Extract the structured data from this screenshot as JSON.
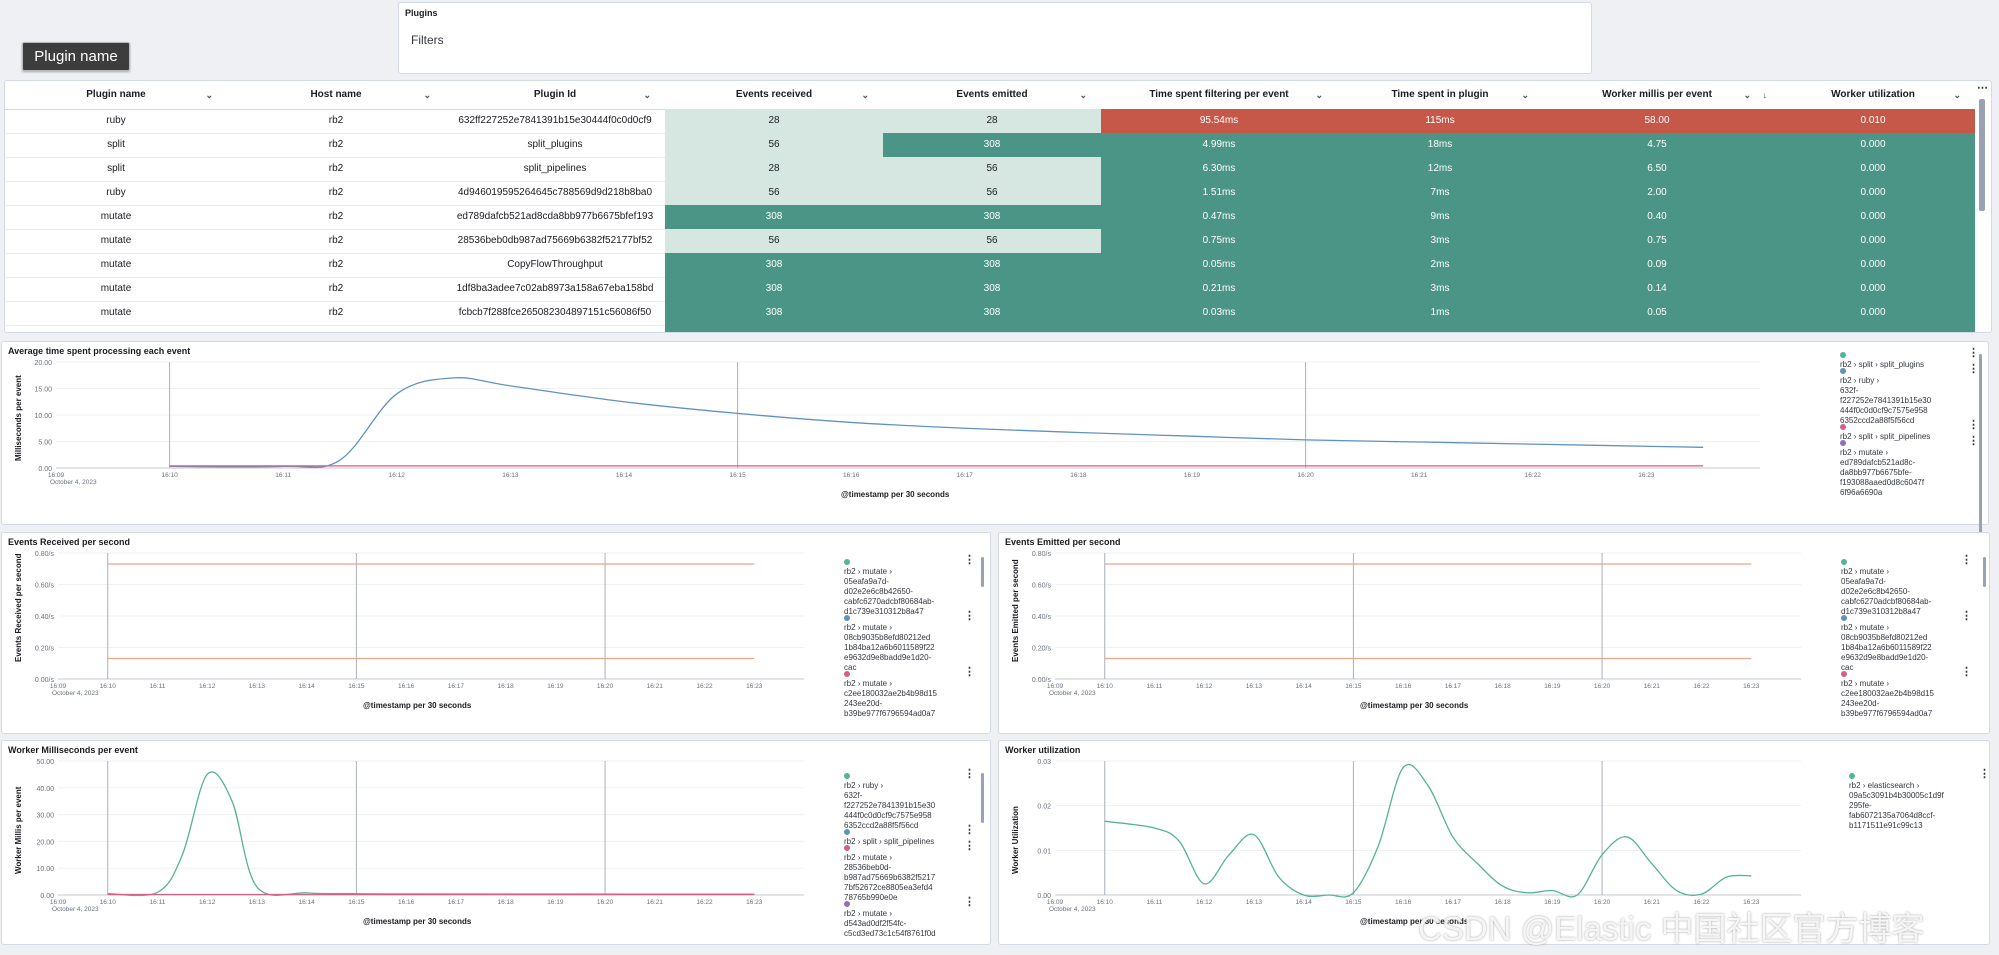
{
  "plugins_panel": {
    "title": "Plugins",
    "filters_label": "Filters"
  },
  "plugin_name_button": "Plugin name",
  "table": {
    "columns": [
      "Plugin name",
      "Host name",
      "Plugin Id",
      "Events received",
      "Events emitted",
      "Time spent filtering per event",
      "Time spent in plugin",
      "Worker millis per event",
      "Worker utilization"
    ],
    "rows": [
      [
        "ruby",
        "rb2",
        "632ff227252e7841391b15e30444f0c0d0cf9",
        "28",
        "28",
        "95.54ms",
        "115ms",
        "58.00",
        "0.010"
      ],
      [
        "split",
        "rb2",
        "split_plugins",
        "56",
        "308",
        "4.99ms",
        "18ms",
        "4.75",
        "0.000"
      ],
      [
        "split",
        "rb2",
        "split_pipelines",
        "28",
        "56",
        "6.30ms",
        "12ms",
        "6.50",
        "0.000"
      ],
      [
        "ruby",
        "rb2",
        "4d946019595264645c788569d9d218b8ba0",
        "56",
        "56",
        "1.51ms",
        "7ms",
        "2.00",
        "0.000"
      ],
      [
        "mutate",
        "rb2",
        "ed789dafcb521ad8cda8bb977b6675bfef193",
        "308",
        "308",
        "0.47ms",
        "9ms",
        "0.40",
        "0.000"
      ],
      [
        "mutate",
        "rb2",
        "28536beb0db987ad75669b6382f52177bf52",
        "56",
        "56",
        "0.75ms",
        "3ms",
        "0.75",
        "0.000"
      ],
      [
        "mutate",
        "rb2",
        "CopyFlowThroughput",
        "308",
        "308",
        "0.05ms",
        "2ms",
        "0.09",
        "0.000"
      ],
      [
        "mutate",
        "rb2",
        "1df8ba3adee7c02ab8973a158a67eba158bd",
        "308",
        "308",
        "0.21ms",
        "3ms",
        "0.14",
        "0.000"
      ],
      [
        "mutate",
        "rb2",
        "fcbcb7f288fce265082304897151c56086f50",
        "308",
        "308",
        "0.03ms",
        "1ms",
        "0.05",
        "0.000"
      ]
    ],
    "cell_colors": [
      [
        "cl",
        "cl",
        "cr",
        "cr",
        "cr",
        "cr"
      ],
      [
        "cl",
        "cg",
        "cg",
        "cg",
        "cg",
        "cg"
      ],
      [
        "cl",
        "cl",
        "cg",
        "cg",
        "cg",
        "cg"
      ],
      [
        "cl",
        "cl",
        "cg",
        "cg",
        "cg",
        "cg"
      ],
      [
        "cg",
        "cg",
        "cg",
        "cg",
        "cg",
        "cg"
      ],
      [
        "cl",
        "cl",
        "cg",
        "cg",
        "cg",
        "cg"
      ],
      [
        "cg",
        "cg",
        "cg",
        "cg",
        "cg",
        "cg"
      ],
      [
        "cg",
        "cg",
        "cg",
        "cg",
        "cg",
        "cg"
      ],
      [
        "cg",
        "cg",
        "cg",
        "cg",
        "cg",
        "cg"
      ]
    ]
  },
  "colors": {
    "green": "#4a9585",
    "light_green": "#d6e7e2",
    "red": "#c6584a",
    "series_blue": "#6092c0",
    "series_green": "#54b399",
    "series_red": "#d36086",
    "series_orange": "#e7a58b",
    "series_purple": "#9170b8"
  },
  "time_ticks": [
    "16:09",
    "16:10",
    "16:11",
    "16:12",
    "16:13",
    "16:14",
    "16:15",
    "16:16",
    "16:17",
    "16:18",
    "16:19",
    "16:20",
    "16:21",
    "16:22",
    "16:23"
  ],
  "date_label": "October 4, 2023",
  "x_title": "@timestamp per 30 seconds",
  "charts": {
    "avg_time": {
      "title": "Average time spent processing each event",
      "ylabel": "Milliseconds per event",
      "legend": [
        {
          "color": "#54b399",
          "text": "rb2 › split › split_plugins"
        },
        {
          "color": "#6092c0",
          "text": "rb2 › ruby ›\n632f-\nf227252e7841391b15e30\n444f0c0d0cf9c7575e958\n6352ccd2a88f5f56cd"
        },
        {
          "color": "#d36086",
          "text": "rb2 › split › split_pipelines"
        },
        {
          "color": "#9170b8",
          "text": "rb2 › mutate ›\ned789dafcb521ad8c-\nda8bb977b6675bfe-\nf193088aaed0d8c6047f\n6f96a6690a"
        }
      ]
    },
    "events_received": {
      "title": "Events Received per second",
      "ylabel": "Events Received per second",
      "legend": [
        {
          "color": "#54b399",
          "text": "rb2 › mutate ›\n05eafa9a7d-\nd02e2e6c8b42650-\ncabfc6270adcbf80684ab-\nd1c739e310312b8a47"
        },
        {
          "color": "#6092c0",
          "text": "rb2 › mutate ›\n08cb9035b8efd80212ed\n1b84ba12a6b6011589f22\ne9632d9e8badd9e1d20-\ncac"
        },
        {
          "color": "#d36086",
          "text": "rb2 › mutate ›\nc2ee180032ae2b4b98d15\n243ee20d-\nb39be977f6796594ad0a7"
        }
      ]
    },
    "events_emitted": {
      "title": "Events Emitted per second",
      "ylabel": "Events Emitted per second",
      "legend": [
        {
          "color": "#54b399",
          "text": "rb2 › mutate ›\n05eafa9a7d-\nd02e2e6c8b42650-\ncabfc6270adcbf80684ab-\nd1c739e310312b8a47"
        },
        {
          "color": "#6092c0",
          "text": "rb2 › mutate ›\n08cb9035b8efd80212ed\n1b84ba12a6b6011589f22\ne9632d9e8badd9e1d20-\ncac"
        },
        {
          "color": "#d36086",
          "text": "rb2 › mutate ›\nc2ee180032ae2b4b98d15\n243ee20d-\nb39be977f6796594ad0a7"
        }
      ]
    },
    "worker_millis": {
      "title": "Worker Milliseconds per event",
      "ylabel": "Worker Millis per event",
      "legend": [
        {
          "color": "#54b399",
          "text": "rb2 › ruby ›\n632f-\nf227252e7841391b15e30\n444f0c0d0cf9c7575e958\n6352ccd2a88f5f56cd"
        },
        {
          "color": "#6092c0",
          "text": "rb2 › split › split_pipelines"
        },
        {
          "color": "#d36086",
          "text": "rb2 › mutate ›\n28536beb0d-\nb987ad75669b6382f5217\n7bf52672ce8805ea3efd4\n78765b990e0e"
        },
        {
          "color": "#9170b8",
          "text": "rb2 › mutate ›\nd543ad0df2f54fc-\nc5cd3ed73c1c54f8761f0d"
        }
      ]
    },
    "worker_util": {
      "title": "Worker utilization",
      "ylabel": "Worker Utilization",
      "legend": [
        {
          "color": "#54b399",
          "text": "rb2 › elasticsearch ›\n09a5c3091b4b30005c1d9f\n295fe-\nfab6072135a7064d8ccf-\nb1171511e91c99c13"
        }
      ]
    }
  },
  "chart_data": [
    {
      "type": "line",
      "title": "Average time spent processing each event",
      "xlabel": "@timestamp per 30 seconds",
      "ylabel": "Milliseconds per event",
      "ylim": [
        0,
        20
      ],
      "yticks": [
        "0.00",
        "5.00",
        "10.00",
        "15.00",
        "20.00"
      ],
      "x": [
        "16:10",
        "16:11",
        "16:11:30",
        "16:12",
        "16:12:30",
        "16:13",
        "16:14",
        "16:15",
        "16:16",
        "16:17",
        "16:18",
        "16:19",
        "16:20",
        "16:21",
        "16:22",
        "16:23:30"
      ],
      "series": [
        {
          "name": "rb2 › ruby › 632ff227252e7841391b15e30444f0c0d0cf9c7575e9586352ccd2a88f5f56cd",
          "color": "#6092c0",
          "values": [
            0.3,
            0.3,
            1.5,
            14,
            17,
            15.5,
            12.5,
            10.3,
            8.6,
            7.5,
            6.7,
            6.0,
            5.3,
            4.9,
            4.5,
            3.9
          ]
        },
        {
          "name": "rb2 › split › split_pipelines",
          "color": "#d36086",
          "values": [
            0.4,
            0.4,
            0.4,
            0.4,
            0.4,
            0.4,
            0.4,
            0.4,
            0.4,
            0.4,
            0.4,
            0.4,
            0.4,
            0.4,
            0.4,
            0.4
          ]
        }
      ]
    },
    {
      "type": "line",
      "title": "Events Received per second",
      "xlabel": "@timestamp per 30 seconds",
      "ylabel": "Events Received per second",
      "ylim": [
        0,
        0.8
      ],
      "yticks": [
        "0.00/s",
        "0.20/s",
        "0.40/s",
        "0.60/s",
        "0.80/s"
      ],
      "x": [
        "16:10",
        "16:23"
      ],
      "series": [
        {
          "color": "#e7a58b",
          "values": [
            0.73,
            0.73
          ]
        },
        {
          "color": "#e7a58b",
          "values": [
            0.13,
            0.13
          ]
        }
      ]
    },
    {
      "type": "line",
      "title": "Events Emitted per second",
      "xlabel": "@timestamp per 30 seconds",
      "ylabel": "Events Emitted per second",
      "ylim": [
        0,
        0.8
      ],
      "yticks": [
        "0.00/s",
        "0.20/s",
        "0.40/s",
        "0.60/s",
        "0.80/s"
      ],
      "x": [
        "16:10",
        "16:23"
      ],
      "series": [
        {
          "color": "#e7a58b",
          "values": [
            0.73,
            0.73
          ]
        },
        {
          "color": "#e7a58b",
          "values": [
            0.13,
            0.13
          ]
        }
      ]
    },
    {
      "type": "line",
      "title": "Worker Milliseconds per event",
      "xlabel": "@timestamp per 30 seconds",
      "ylabel": "Worker Millis per event",
      "ylim": [
        0,
        50
      ],
      "yticks": [
        "0.00",
        "10.00",
        "20.00",
        "30.00",
        "40.00",
        "50.00"
      ],
      "x": [
        "16:10",
        "16:11",
        "16:11:30",
        "16:12",
        "16:12:30",
        "16:13",
        "16:14",
        "16:15",
        "16:16",
        "16:23"
      ],
      "series": [
        {
          "name": "rb2 › ruby › 632ff227252e7841391b15e30444f0c0d0cf9c7575e9586352ccd2a88f5f56cd",
          "color": "#54b399",
          "values": [
            0.5,
            1,
            15,
            45,
            35,
            3,
            0.8,
            0.5,
            0.4,
            0.3
          ]
        },
        {
          "name": "rb2 › mutate › 28536beb0db987ad75669b6382f52177bf52672ce8805ea3efd478765b990e0e",
          "color": "#d36086",
          "values": [
            0.2,
            0.2,
            0.2,
            0.2,
            0.2,
            0.2,
            0.2,
            0.2,
            0.2,
            0.2
          ]
        }
      ]
    },
    {
      "type": "line",
      "title": "Worker utilization",
      "xlabel": "@timestamp per 30 seconds",
      "ylabel": "Worker Utilization",
      "ylim": [
        0,
        0.03
      ],
      "yticks": [
        "0.00",
        "0.01",
        "0.02",
        "0.03"
      ],
      "x": [
        "16:10",
        "16:11",
        "16:11:30",
        "16:12",
        "16:12:30",
        "16:13",
        "16:13:30",
        "16:14",
        "16:14:30",
        "16:15",
        "16:15:30",
        "16:16",
        "16:16:30",
        "16:17",
        "16:17:30",
        "16:18",
        "16:18:30",
        "16:19",
        "16:19:30",
        "16:20",
        "16:20:30",
        "16:21",
        "16:21:30",
        "16:22",
        "16:22:30",
        "16:23"
      ],
      "series": [
        {
          "name": "rb2 › elasticsearch › 09a5c3091b4b30005c1d9f295fefab6072135a7064d8ccfb1171511e91c99c13",
          "color": "#54b399",
          "values": [
            0.0165,
            0.015,
            0.012,
            0.0025,
            0.009,
            0.0135,
            0.004,
            0,
            0,
            0.0005,
            0.011,
            0.0285,
            0.0245,
            0.013,
            0.007,
            0.002,
            0.0005,
            0.001,
            0,
            0.009,
            0.013,
            0.007,
            0.001,
            0.0002,
            0.004,
            0.0043
          ]
        }
      ]
    }
  ],
  "watermark": "CSDN @Elastic 中国社区官方博客"
}
